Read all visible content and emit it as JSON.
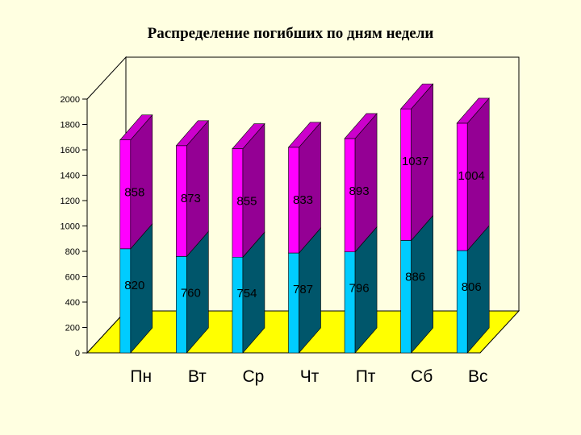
{
  "chart_data": {
    "type": "bar",
    "stacked": true,
    "three_d": true,
    "title": "Распределение погибших по дням недели",
    "xlabel": "",
    "ylabel": "",
    "categories": [
      "Пн",
      "Вт",
      "Ср",
      "Чт",
      "Пт",
      "Сб",
      "Вс"
    ],
    "series": [
      {
        "values": [
          820,
          760,
          754,
          787,
          796,
          886,
          806
        ],
        "color": "#00CCFF"
      },
      {
        "values": [
          858,
          873,
          855,
          833,
          893,
          1037,
          1004
        ],
        "color": "#FF00FF"
      }
    ],
    "y_ticks": [
      "0",
      "200",
      "400",
      "600",
      "800",
      "1000",
      "1200",
      "1400",
      "1600",
      "1800",
      "2000"
    ],
    "ylim": [
      0,
      2000
    ],
    "grid": false,
    "legend": "none",
    "floor_color": "#FFFF00",
    "background_color": "#FFFFE1"
  }
}
